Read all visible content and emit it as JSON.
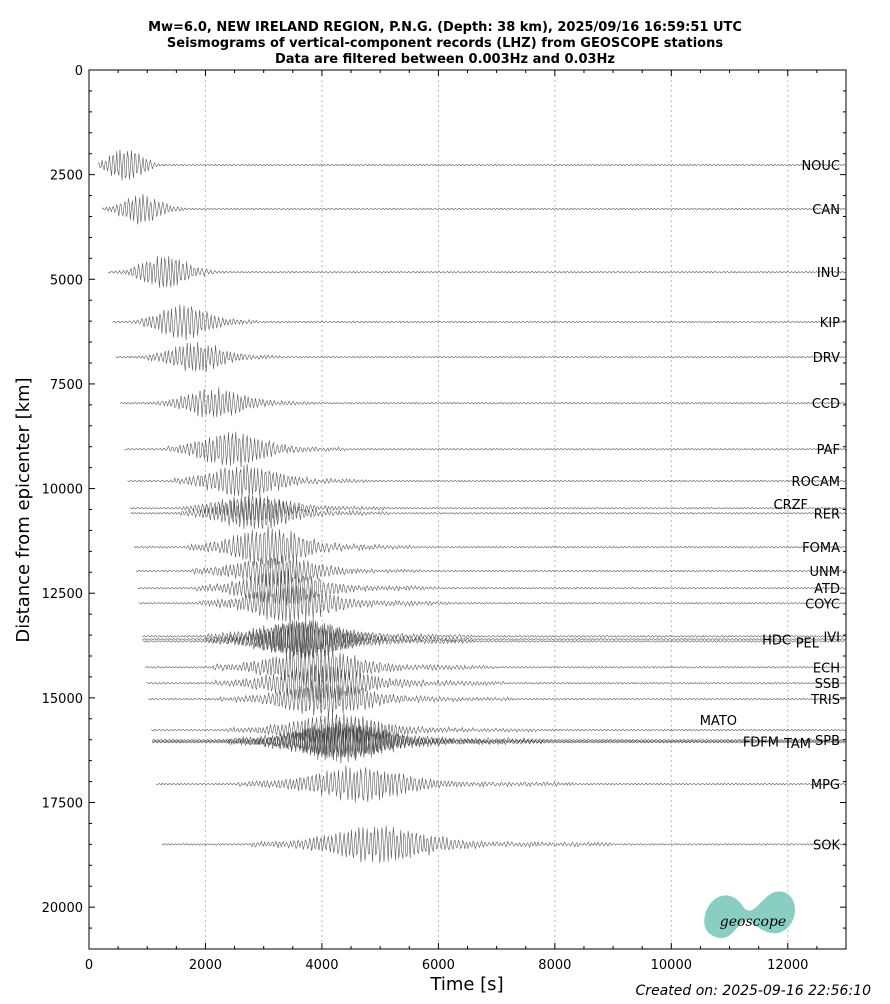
{
  "chart_data": {
    "type": "record_section",
    "title": [
      "Mw=6.0, NEW IRELAND REGION, P.N.G. (Depth: 38 km), 2025/09/16 16:59:51 UTC",
      "Seismograms of vertical-component records (LHZ) from GEOSCOPE stations",
      "Data are filtered between 0.003Hz and 0.03Hz"
    ],
    "xlabel": "Time [s]",
    "ylabel": "Distance from epicenter [km]",
    "xlim": [
      0,
      13000
    ],
    "ylim": [
      0,
      21000
    ],
    "y_inverted": true,
    "xticks": [
      0,
      2000,
      4000,
      6000,
      8000,
      10000,
      12000
    ],
    "yticks": [
      0,
      2500,
      5000,
      7500,
      10000,
      12500,
      15000,
      17500,
      20000
    ],
    "grid_x": true,
    "trace_color": "#333333",
    "stations": [
      {
        "name": "NOUC",
        "distance": 2270
      },
      {
        "name": "CAN",
        "distance": 3320
      },
      {
        "name": "INU",
        "distance": 4830
      },
      {
        "name": "KIP",
        "distance": 6020
      },
      {
        "name": "DRV",
        "distance": 6860
      },
      {
        "name": "CCD",
        "distance": 7960
      },
      {
        "name": "PAF",
        "distance": 9060
      },
      {
        "name": "ROCAM",
        "distance": 9820
      },
      {
        "name": "CRZF",
        "distance": 10470
      },
      {
        "name": "RER",
        "distance": 10590
      },
      {
        "name": "FOMA",
        "distance": 11400
      },
      {
        "name": "UNM",
        "distance": 11970
      },
      {
        "name": "ATD",
        "distance": 12380
      },
      {
        "name": "COYC",
        "distance": 12740
      },
      {
        "name": "HDC",
        "distance": 13600
      },
      {
        "name": "PEL",
        "distance": 13650
      },
      {
        "name": "IVI",
        "distance": 13530
      },
      {
        "name": "ECH",
        "distance": 14270
      },
      {
        "name": "SSB",
        "distance": 14650
      },
      {
        "name": "TRIS",
        "distance": 15030
      },
      {
        "name": "MATO",
        "distance": 15770
      },
      {
        "name": "SPB",
        "distance": 16010
      },
      {
        "name": "FDFM",
        "distance": 16040
      },
      {
        "name": "TAM",
        "distance": 16060
      },
      {
        "name": "MPG",
        "distance": 17060
      },
      {
        "name": "SOK",
        "distance": 18500
      }
    ],
    "footer": "Created on: 2025-09-16 22:56:10",
    "logo_text": "geoscope"
  }
}
